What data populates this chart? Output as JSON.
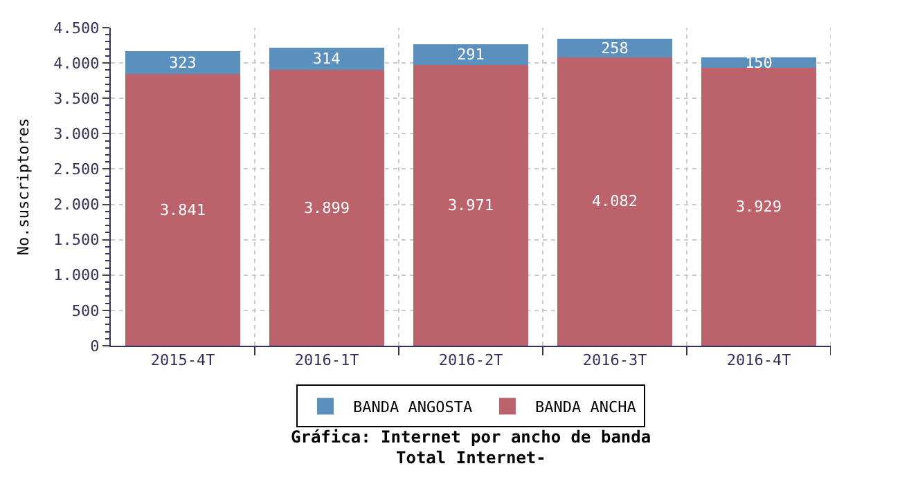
{
  "chart_data": {
    "type": "bar",
    "stacked": true,
    "title": "Gráfica: Internet por ancho de banda",
    "subtitle": "Total Internet-",
    "ylabel": "No.suscriptores",
    "categories": [
      "2015-4T",
      "2016-1T",
      "2016-2T",
      "2016-3T",
      "2016-4T"
    ],
    "series": [
      {
        "name": "BANDA ANCHA",
        "color": "#bc626b",
        "values": [
          3841,
          3899,
          3971,
          4082,
          3929
        ],
        "value_labels": [
          "3.841",
          "3.899",
          "3.971",
          "4.082",
          "3.929"
        ]
      },
      {
        "name": "BANDA ANGOSTA",
        "color": "#5b8fbd",
        "values": [
          323,
          314,
          291,
          258,
          150
        ],
        "value_labels": [
          "323",
          "314",
          "291",
          "258",
          "150"
        ]
      }
    ],
    "ylim": [
      0,
      4500
    ],
    "yticks": [
      0,
      500,
      {
        "value": 1000,
        "label": "1.000"
      },
      {
        "value": 1500,
        "label": "1.500"
      },
      {
        "value": 2000,
        "label": "2.000"
      },
      {
        "value": 2500,
        "label": "2.500"
      },
      {
        "value": 3000,
        "label": "3.000"
      },
      {
        "value": 3500,
        "label": "3.500"
      },
      {
        "value": 4000,
        "label": "4.000"
      },
      {
        "value": 4500,
        "label": "4.500"
      }
    ],
    "grid": true,
    "legend": "bottom"
  }
}
